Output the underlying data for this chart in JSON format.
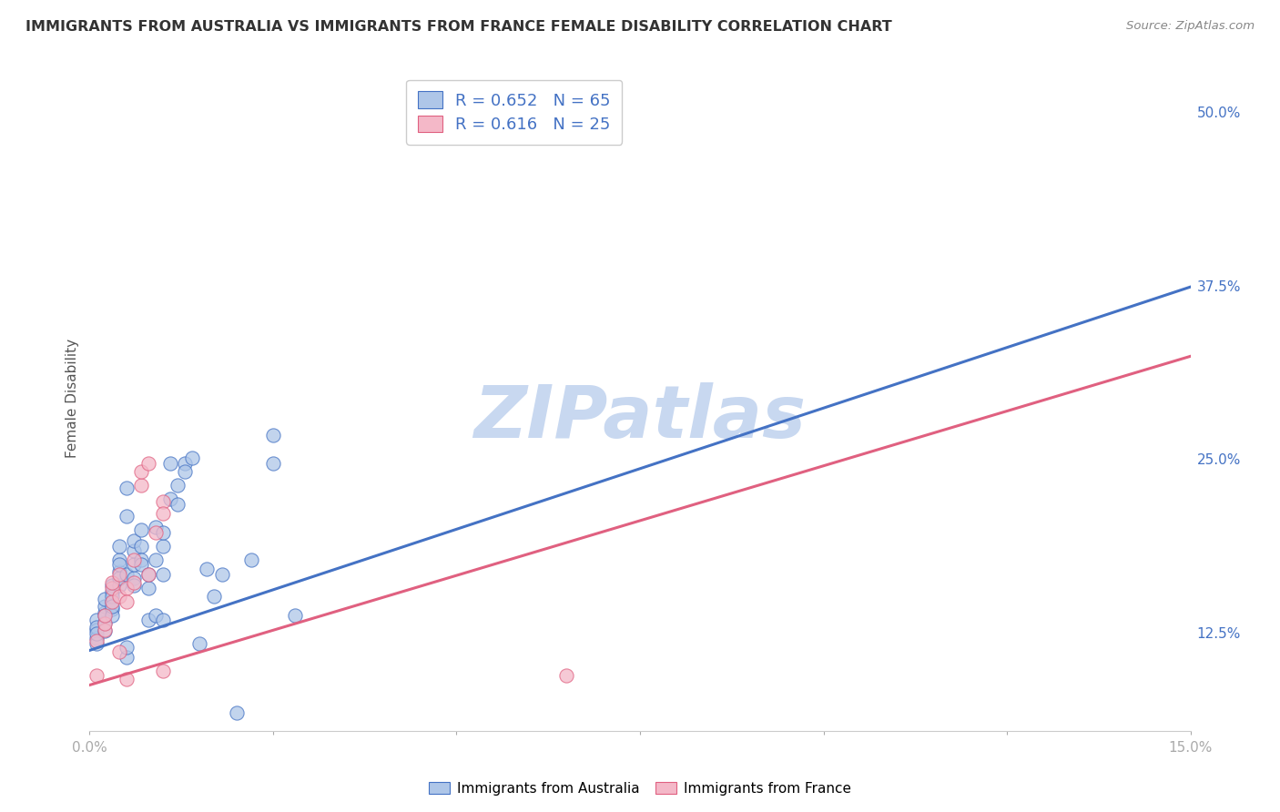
{
  "title": "IMMIGRANTS FROM AUSTRALIA VS IMMIGRANTS FROM FRANCE FEMALE DISABILITY CORRELATION CHART",
  "source": "Source: ZipAtlas.com",
  "ylabel": "Female Disability",
  "right_yticks": [
    "50.0%",
    "37.5%",
    "25.0%",
    "12.5%"
  ],
  "right_ytick_vals": [
    0.5,
    0.375,
    0.25,
    0.125
  ],
  "australia_color": "#aec6e8",
  "australia_line_color": "#4472c4",
  "france_color": "#f4b8c8",
  "france_line_color": "#e06080",
  "legend_R_color": "#4472c4",
  "australia_R": 0.652,
  "australia_N": 65,
  "france_R": 0.616,
  "france_N": 25,
  "australia_scatter": [
    [
      0.001,
      0.135
    ],
    [
      0.001,
      0.128
    ],
    [
      0.001,
      0.122
    ],
    [
      0.001,
      0.13
    ],
    [
      0.001,
      0.118
    ],
    [
      0.001,
      0.125
    ],
    [
      0.002,
      0.14
    ],
    [
      0.002,
      0.133
    ],
    [
      0.002,
      0.145
    ],
    [
      0.002,
      0.138
    ],
    [
      0.002,
      0.127
    ],
    [
      0.002,
      0.15
    ],
    [
      0.003,
      0.148
    ],
    [
      0.003,
      0.155
    ],
    [
      0.003,
      0.143
    ],
    [
      0.003,
      0.16
    ],
    [
      0.003,
      0.138
    ],
    [
      0.003,
      0.152
    ],
    [
      0.003,
      0.145
    ],
    [
      0.004,
      0.16
    ],
    [
      0.004,
      0.17
    ],
    [
      0.004,
      0.178
    ],
    [
      0.004,
      0.165
    ],
    [
      0.004,
      0.188
    ],
    [
      0.004,
      0.175
    ],
    [
      0.005,
      0.108
    ],
    [
      0.005,
      0.115
    ],
    [
      0.005,
      0.168
    ],
    [
      0.005,
      0.21
    ],
    [
      0.005,
      0.23
    ],
    [
      0.006,
      0.165
    ],
    [
      0.006,
      0.175
    ],
    [
      0.006,
      0.185
    ],
    [
      0.006,
      0.16
    ],
    [
      0.006,
      0.192
    ],
    [
      0.007,
      0.188
    ],
    [
      0.007,
      0.2
    ],
    [
      0.007,
      0.178
    ],
    [
      0.007,
      0.175
    ],
    [
      0.008,
      0.158
    ],
    [
      0.008,
      0.168
    ],
    [
      0.008,
      0.135
    ],
    [
      0.009,
      0.138
    ],
    [
      0.009,
      0.202
    ],
    [
      0.009,
      0.178
    ],
    [
      0.01,
      0.188
    ],
    [
      0.01,
      0.198
    ],
    [
      0.01,
      0.168
    ],
    [
      0.01,
      0.135
    ],
    [
      0.011,
      0.248
    ],
    [
      0.011,
      0.222
    ],
    [
      0.012,
      0.232
    ],
    [
      0.012,
      0.218
    ],
    [
      0.013,
      0.248
    ],
    [
      0.013,
      0.242
    ],
    [
      0.014,
      0.252
    ],
    [
      0.015,
      0.118
    ],
    [
      0.016,
      0.172
    ],
    [
      0.017,
      0.152
    ],
    [
      0.018,
      0.168
    ],
    [
      0.02,
      0.068
    ],
    [
      0.022,
      0.178
    ],
    [
      0.025,
      0.268
    ],
    [
      0.025,
      0.248
    ],
    [
      0.028,
      0.138
    ]
  ],
  "france_scatter": [
    [
      0.001,
      0.12
    ],
    [
      0.001,
      0.095
    ],
    [
      0.002,
      0.128
    ],
    [
      0.002,
      0.132
    ],
    [
      0.002,
      0.138
    ],
    [
      0.003,
      0.148
    ],
    [
      0.003,
      0.158
    ],
    [
      0.003,
      0.162
    ],
    [
      0.004,
      0.152
    ],
    [
      0.004,
      0.168
    ],
    [
      0.004,
      0.112
    ],
    [
      0.005,
      0.158
    ],
    [
      0.005,
      0.148
    ],
    [
      0.005,
      0.092
    ],
    [
      0.006,
      0.162
    ],
    [
      0.006,
      0.178
    ],
    [
      0.007,
      0.232
    ],
    [
      0.007,
      0.242
    ],
    [
      0.008,
      0.168
    ],
    [
      0.008,
      0.248
    ],
    [
      0.009,
      0.198
    ],
    [
      0.01,
      0.22
    ],
    [
      0.01,
      0.212
    ],
    [
      0.01,
      0.098
    ],
    [
      0.065,
      0.095
    ]
  ],
  "australia_line_x": [
    0.0,
    0.15
  ],
  "australia_line_y": [
    0.113,
    0.375
  ],
  "france_line_x": [
    0.0,
    0.15
  ],
  "france_line_y": [
    0.088,
    0.325
  ],
  "xlim": [
    0.0,
    0.15
  ],
  "ylim": [
    0.055,
    0.535
  ],
  "xticks": [
    0.0,
    0.025,
    0.05,
    0.075,
    0.1,
    0.125,
    0.15
  ],
  "xtick_labels": [
    "0.0%",
    "",
    "",
    "",
    "",
    "",
    "15.0%"
  ],
  "background_color": "#ffffff",
  "grid_color": "#d8d8d8",
  "watermark": "ZIPatlas",
  "watermark_color": "#c8d8f0",
  "marker_size": 120
}
